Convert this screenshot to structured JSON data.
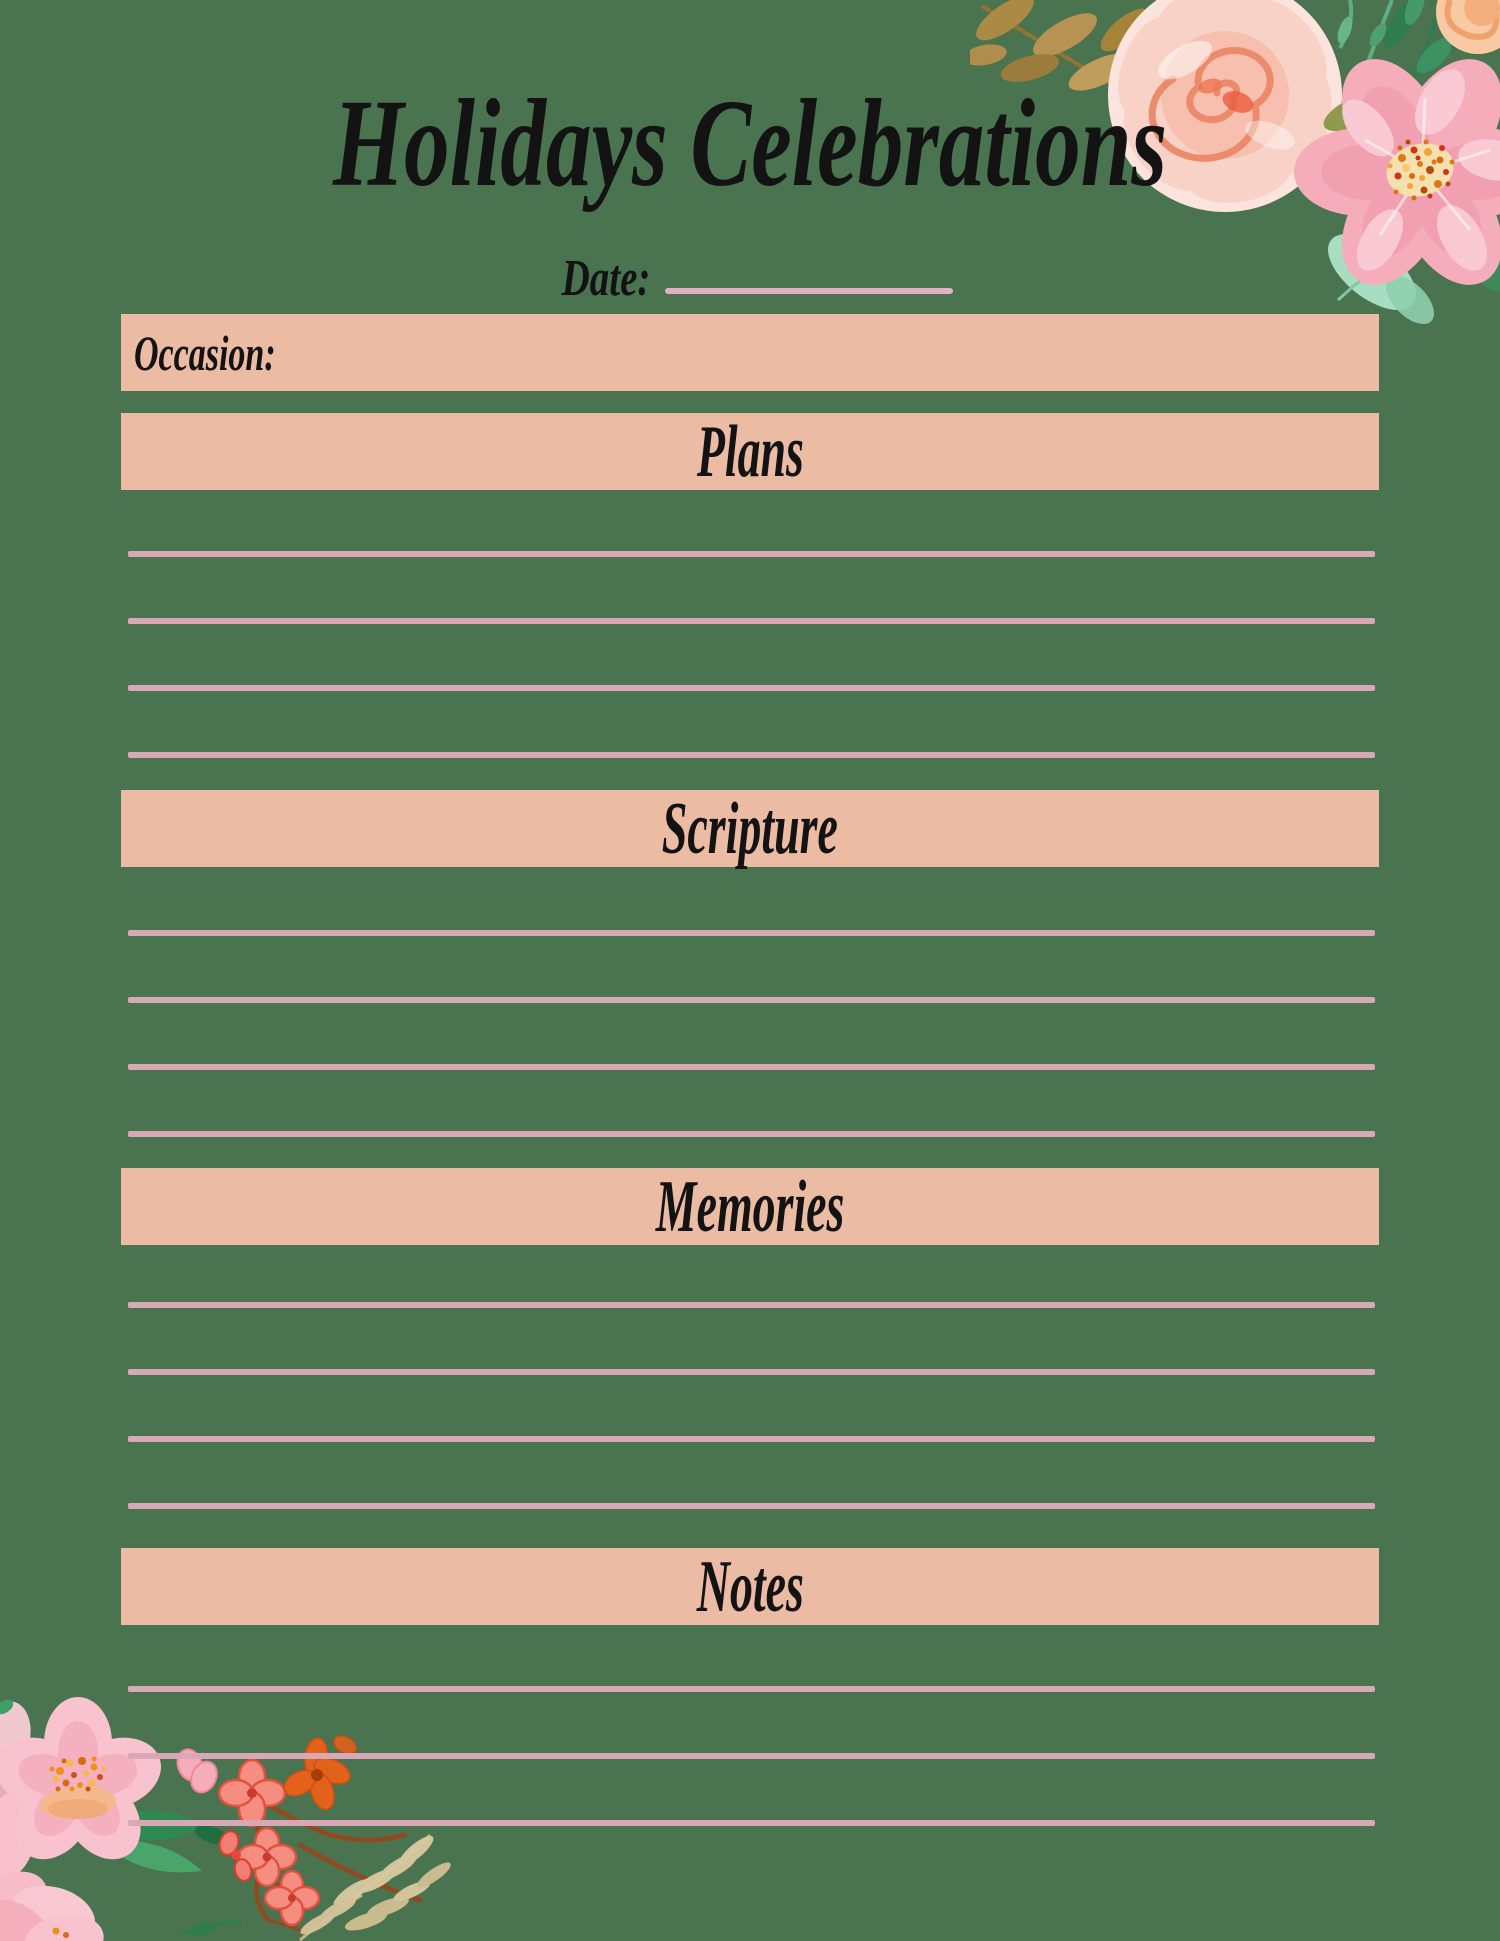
{
  "page": {
    "title": "Holidays Celebrations",
    "background_color": "#4A7350",
    "accent_bar_color": "#EBBBA4",
    "ruled_line_color": "#D8A8B6",
    "date_line_color": "#E4B0C3",
    "text_color": "#131313"
  },
  "fields": {
    "date_label": "Date:",
    "date_value": "",
    "occasion_label": "Occasion:",
    "occasion_value": ""
  },
  "sections": [
    {
      "label": "Plans",
      "ruled_lines": 4
    },
    {
      "label": "Scripture",
      "ruled_lines": 4
    },
    {
      "label": "Memories",
      "ruled_lines": 4
    },
    {
      "label": "Notes",
      "ruled_lines": 3
    }
  ],
  "decorations": {
    "top_right": "watercolor bouquet: blush rose, pink camellia, olive and mint leaves",
    "bottom_left": "watercolor cluster: pink blossoms, coral sprigs, brown branches, beige fern"
  }
}
